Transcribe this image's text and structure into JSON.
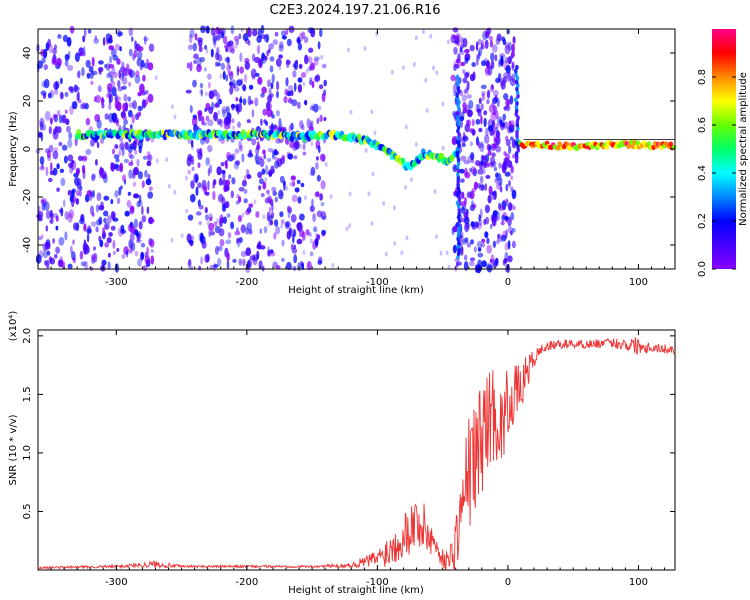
{
  "title": "C2E3.2024.197.21.06.R16",
  "colors": {
    "snr_line": "#ee3333",
    "colormap": [
      "#8800ff",
      "#4400ff",
      "#0000ff",
      "#0088ff",
      "#00ffff",
      "#00ff66",
      "#66ff00",
      "#ffff00",
      "#ff8800",
      "#ff0000",
      "#ff0088"
    ]
  },
  "chart_data": [
    {
      "type": "heatmap",
      "xlabel": "Height of straight line (km)",
      "ylabel": "Frequency (Hz)",
      "xlim": [
        -360,
        128
      ],
      "ylim": [
        -50,
        50
      ],
      "xticks": [
        -300,
        -200,
        -100,
        0,
        100
      ],
      "xtick_labels": [
        "-300",
        "-200",
        "-100",
        "0",
        "100"
      ],
      "yticks": [
        -40,
        -20,
        0,
        20,
        40
      ],
      "ytick_labels": [
        "-40",
        "-20",
        "0",
        "20",
        "40"
      ],
      "colorbar": {
        "label": "Normalized spectral amplitude",
        "range": [
          0,
          1
        ],
        "ticks": [
          0.0,
          0.2,
          0.4,
          0.6,
          0.8
        ],
        "tick_labels": [
          "0.0",
          "0.2",
          "0.4",
          "0.6",
          "0.8"
        ]
      },
      "dominant_trace": {
        "x": [
          -330,
          -300,
          -250,
          -200,
          -160,
          -140,
          -120,
          -105,
          -95,
          -85,
          -75,
          -65,
          -55,
          -45,
          -38,
          10,
          50,
          90,
          128
        ],
        "y": [
          6,
          6,
          6,
          6,
          5,
          6,
          5,
          3,
          0,
          -4,
          -8,
          -2,
          -3,
          -5,
          0,
          2,
          1,
          2,
          1
        ]
      }
    },
    {
      "type": "line",
      "xlabel": "Height of straight line (km)",
      "ylabel": "SNR (10 * v/v)",
      "multiplier": "(x10⁴)",
      "xlim": [
        -360,
        128
      ],
      "ylim": [
        0,
        2.05
      ],
      "xticks": [
        -300,
        -200,
        -100,
        0,
        100
      ],
      "xtick_labels": [
        "-300",
        "-200",
        "-100",
        "0",
        "100"
      ],
      "yticks": [
        0.5,
        1.0,
        1.5,
        2.0
      ],
      "ytick_labels": [
        "0.5",
        "1.0",
        "1.5",
        "2.0"
      ],
      "series": [
        {
          "x": [
            -360,
            -300,
            -270,
            -250,
            -200,
            -150,
            -120,
            -110,
            -100,
            -90,
            -80,
            -70,
            -60,
            -55,
            -50,
            -45,
            -40,
            -35,
            -30,
            -25,
            -20,
            -15,
            -10,
            -5,
            0,
            5,
            10,
            15,
            20,
            25,
            30,
            40,
            60,
            80,
            100,
            110,
            128
          ],
          "y": [
            0.02,
            0.03,
            0.05,
            0.03,
            0.03,
            0.03,
            0.04,
            0.07,
            0.1,
            0.18,
            0.3,
            0.42,
            0.3,
            0.2,
            0.1,
            0.08,
            0.25,
            0.55,
            0.85,
            0.95,
            1.15,
            1.3,
            1.35,
            1.2,
            1.45,
            1.5,
            1.55,
            1.7,
            1.8,
            1.88,
            1.91,
            1.93,
            1.93,
            1.94,
            1.92,
            1.9,
            1.88
          ],
          "jitter": [
            0.01,
            0.01,
            0.03,
            0.01,
            0.01,
            0.01,
            0.02,
            0.05,
            0.08,
            0.15,
            0.2,
            0.25,
            0.2,
            0.1,
            0.08,
            0.1,
            0.25,
            0.35,
            0.5,
            0.5,
            0.5,
            0.45,
            0.4,
            0.35,
            0.3,
            0.25,
            0.2,
            0.15,
            0.08,
            0.05,
            0.04,
            0.04,
            0.04,
            0.04,
            0.08,
            0.04,
            0.04
          ]
        }
      ]
    }
  ]
}
